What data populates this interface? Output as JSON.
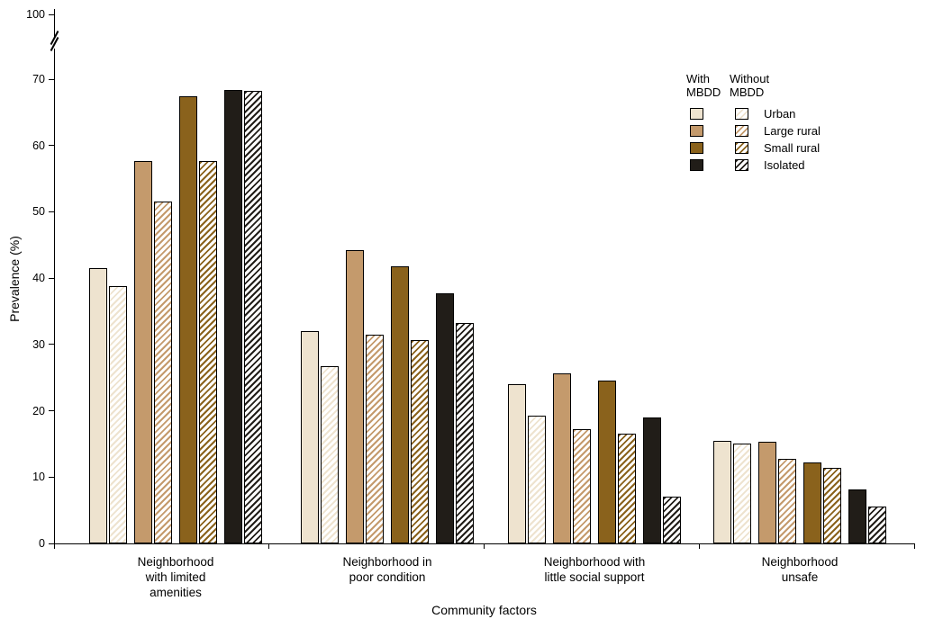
{
  "chart_data": {
    "type": "bar",
    "title": "",
    "xlabel": "Community factors",
    "ylabel": "Prevalence (%)",
    "ylim": [
      0,
      70
    ],
    "y_ticks": [
      0,
      10,
      20,
      30,
      40,
      50,
      60,
      70
    ],
    "y_axis_break": {
      "shown_max_label": "100",
      "break_between": [
        70,
        100
      ]
    },
    "grid": false,
    "categories": [
      "Neighborhood\nwith limited\namenities",
      "Neighborhood in\npoor condition",
      "Neighborhood with\nlittle social support",
      "Neighborhood\nunsafe"
    ],
    "legend": {
      "col1_header": "With\nMBDD",
      "col2_header": "Without\nMBDD",
      "entries": [
        "Urban",
        "Large rural",
        "Small rural",
        "Isolated"
      ],
      "position": "top-right"
    },
    "colors": {
      "urban": "#eee3cf",
      "large_rural": "#c49a6c",
      "small_rural": "#8a621c",
      "isolated": "#211d18"
    },
    "series": [
      {
        "name": "Urban, With MBDD",
        "group": "urban",
        "pattern": "solid",
        "values": [
          41.5,
          32.0,
          24.0,
          15.5
        ]
      },
      {
        "name": "Urban, Without MBDD",
        "group": "urban",
        "pattern": "hatch",
        "values": [
          38.8,
          26.7,
          19.2,
          15.0
        ]
      },
      {
        "name": "Large rural, With MBDD",
        "group": "large_rural",
        "pattern": "solid",
        "values": [
          57.6,
          44.2,
          25.7,
          15.3
        ]
      },
      {
        "name": "Large rural, Without MBDD",
        "group": "large_rural",
        "pattern": "hatch",
        "values": [
          51.5,
          31.5,
          17.2,
          12.7
        ]
      },
      {
        "name": "Small rural, With MBDD",
        "group": "small_rural",
        "pattern": "solid",
        "values": [
          67.4,
          41.8,
          24.5,
          12.2
        ]
      },
      {
        "name": "Small rural, Without MBDD",
        "group": "small_rural",
        "pattern": "hatch",
        "values": [
          57.6,
          30.7,
          16.5,
          11.4
        ]
      },
      {
        "name": "Isolated, With MBDD",
        "group": "isolated",
        "pattern": "solid",
        "values": [
          68.4,
          37.7,
          19.0,
          8.1
        ]
      },
      {
        "name": "Isolated, Without MBDD",
        "group": "isolated",
        "pattern": "hatch",
        "values": [
          68.3,
          33.2,
          7.1,
          5.5
        ]
      }
    ]
  }
}
